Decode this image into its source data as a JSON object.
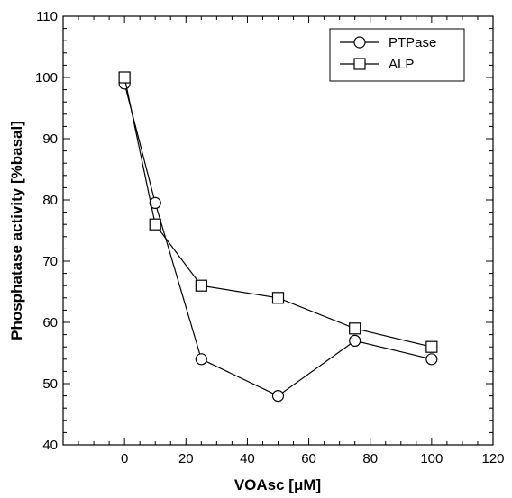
{
  "chart_data": {
    "type": "line",
    "title": "",
    "xlabel": "VOAsc [μM]",
    "ylabel": "Phosphatase activity [%basal]",
    "xlim": [
      -20,
      120
    ],
    "ylim": [
      40,
      110
    ],
    "xticks": [
      0,
      20,
      40,
      60,
      80,
      100,
      120
    ],
    "yticks": [
      40,
      50,
      60,
      70,
      80,
      90,
      100,
      110
    ],
    "grid": false,
    "legend_position": "top-right",
    "series": [
      {
        "name": "PTPase",
        "marker": "circle",
        "color": "#000000",
        "x": [
          0,
          10,
          25,
          50,
          75,
          100
        ],
        "y": [
          99,
          79.5,
          54,
          48,
          57,
          54
        ]
      },
      {
        "name": "ALP",
        "marker": "square",
        "color": "#000000",
        "x": [
          0,
          10,
          25,
          50,
          75,
          100
        ],
        "y": [
          100,
          76,
          66,
          64,
          59,
          56
        ]
      }
    ]
  }
}
